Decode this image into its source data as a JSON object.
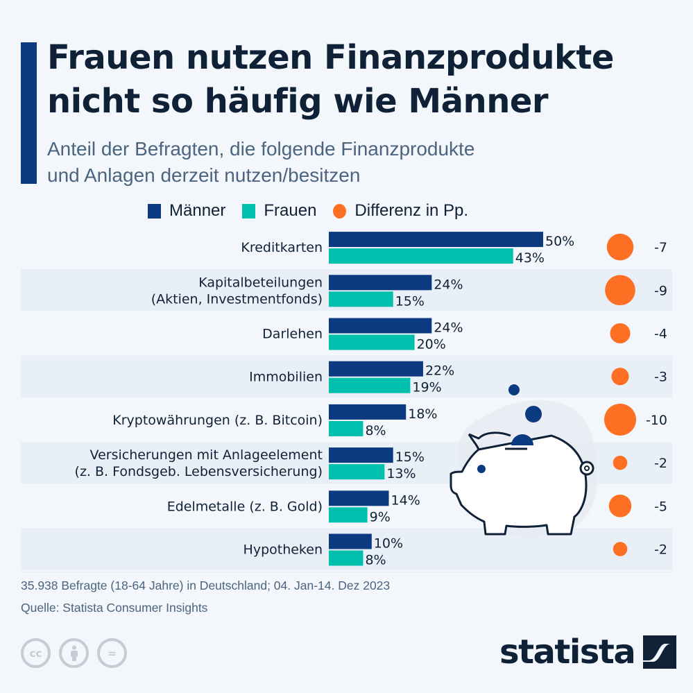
{
  "header": {
    "title_line1": "Frauen nutzen Finanzprodukte",
    "title_line2": "nicht so häufig wie Männer",
    "subtitle_line1": "Anteil der Befragten, die folgende Finanzprodukte",
    "subtitle_line2": "und Anlagen derzeit nutzen/besitzen"
  },
  "legend": [
    {
      "label": "Männer",
      "color": "#0b3a80",
      "shape": "square"
    },
    {
      "label": "Frauen",
      "color": "#00bfad",
      "shape": "square"
    },
    {
      "label": "Differenz in Pp.",
      "color": "#fd6f22",
      "shape": "circle"
    }
  ],
  "chart_data": {
    "type": "bar",
    "orientation": "horizontal",
    "title": "Frauen nutzen Finanzprodukte nicht so häufig wie Männer",
    "subtitle": "Anteil der Befragten, die folgende Finanzprodukte und Anlagen derzeit nutzen/besitzen",
    "unit": "%",
    "categories": [
      [
        "Kreditkarten"
      ],
      [
        "Kapitalbeteilungen",
        "(Aktien, Investmentfonds)"
      ],
      [
        "Darlehen"
      ],
      [
        "Immobilien"
      ],
      [
        "Kryptowährungen (z. B. Bitcoin)"
      ],
      [
        "Versicherungen mit Anlageelement",
        "(z. B. Fondsgeb. Lebensversicherung)"
      ],
      [
        "Edelmetalle (z. B. Gold)"
      ],
      [
        "Hypotheken"
      ]
    ],
    "series": [
      {
        "name": "Männer",
        "color": "#0b3a80",
        "values": [
          50,
          24,
          24,
          22,
          18,
          15,
          14,
          10
        ],
        "labels": [
          "50%",
          "24%",
          "24%",
          "22%",
          "18%",
          "15%",
          "14%",
          "10%"
        ]
      },
      {
        "name": "Frauen",
        "color": "#00bfad",
        "values": [
          43,
          15,
          20,
          19,
          8,
          13,
          9,
          8
        ],
        "labels": [
          "43%",
          "15%",
          "20%",
          "19%",
          "8%",
          "13%",
          "9%",
          "8%"
        ]
      }
    ],
    "difference": {
      "name": "Differenz in Pp.",
      "color": "#fd6f22",
      "values": [
        -7,
        -9,
        -4,
        -3,
        -10,
        -2,
        -5,
        -2
      ],
      "labels": [
        "-7",
        "-9",
        "-4",
        "-3",
        "-10",
        "-2",
        "-5",
        "-2"
      ]
    },
    "xlim": [
      0,
      50
    ],
    "grid": false,
    "legend_position": "top",
    "row_band_color": "#e9eff7"
  },
  "illustration": "piggy-bank-with-coins",
  "footer": {
    "note": "35.938 Befragte (18-64 Jahre) in Deutschland; 04. Jan-14. Dez 2023",
    "source": "Quelle: Statista Consumer Insights",
    "license_icons": [
      "cc",
      "by",
      "nd"
    ],
    "cc_text": "cc",
    "nd_text": "=",
    "brand": "statista"
  }
}
